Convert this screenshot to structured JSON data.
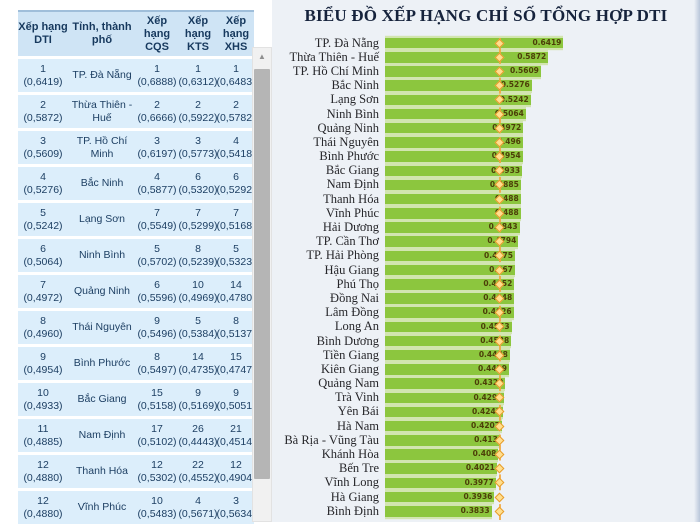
{
  "table": {
    "headers": [
      {
        "top": "Xếp hạng",
        "bottom": "DTI"
      },
      {
        "top": "Tỉnh, thành",
        "bottom": "phố"
      },
      {
        "top": "Xếp hạng",
        "bottom": "CQS"
      },
      {
        "top": "Xếp hạng",
        "bottom": "KTS"
      },
      {
        "top": "Xếp hạng",
        "bottom": "XHS"
      }
    ],
    "rows": [
      {
        "dti_rank": "1",
        "dti_value": "(0,6419)",
        "province": "TP. Đà Nẵng",
        "cqs_rank": "1",
        "cqs_value": "(0,6888)",
        "kts_rank": "1",
        "kts_value": "(0,6312)",
        "xhs_rank": "1",
        "xhs_value": "(0,6483)"
      },
      {
        "dti_rank": "2",
        "dti_value": "(0,5872)",
        "province": "Thừa Thiên - Huế",
        "cqs_rank": "2",
        "cqs_value": "(0,6666)",
        "kts_rank": "2",
        "kts_value": "(0,5922)",
        "xhs_rank": "2",
        "xhs_value": "(0,5782)"
      },
      {
        "dti_rank": "3",
        "dti_value": "(0,5609)",
        "province": "TP. Hồ Chí Minh",
        "cqs_rank": "3",
        "cqs_value": "(0,6197)",
        "kts_rank": "3",
        "kts_value": "(0,5773)",
        "xhs_rank": "4",
        "xhs_value": "(0,5418)"
      },
      {
        "dti_rank": "4",
        "dti_value": "(0,5276)",
        "province": "Bắc Ninh",
        "cqs_rank": "4",
        "cqs_value": "(0,5877)",
        "kts_rank": "6",
        "kts_value": "(0,5320)",
        "xhs_rank": "6",
        "xhs_value": "(0,5292)"
      },
      {
        "dti_rank": "5",
        "dti_value": "(0,5242)",
        "province": "Lạng Sơn",
        "cqs_rank": "7",
        "cqs_value": "(0,5549)",
        "kts_rank": "7",
        "kts_value": "(0,5299)",
        "xhs_rank": "7",
        "xhs_value": "(0,5168)"
      },
      {
        "dti_rank": "6",
        "dti_value": "(0,5064)",
        "province": "Ninh Bình",
        "cqs_rank": "5",
        "cqs_value": "(0,5702)",
        "kts_rank": "8",
        "kts_value": "(0,5239)",
        "xhs_rank": "5",
        "xhs_value": "(0,5323)"
      },
      {
        "dti_rank": "7",
        "dti_value": "(0,4972)",
        "province": "Quảng Ninh",
        "cqs_rank": "6",
        "cqs_value": "(0,5596)",
        "kts_rank": "10",
        "kts_value": "(0,4969)",
        "xhs_rank": "14",
        "xhs_value": "(0,4780)"
      },
      {
        "dti_rank": "8",
        "dti_value": "(0,4960)",
        "province": "Thái Nguyên",
        "cqs_rank": "9",
        "cqs_value": "(0,5496)",
        "kts_rank": "5",
        "kts_value": "(0,5384)",
        "xhs_rank": "8",
        "xhs_value": "(0,5137)"
      },
      {
        "dti_rank": "9",
        "dti_value": "(0,4954)",
        "province": "Bình Phước",
        "cqs_rank": "8",
        "cqs_value": "(0,5497)",
        "kts_rank": "14",
        "kts_value": "(0,4735)",
        "xhs_rank": "15",
        "xhs_value": "(0,4747)"
      },
      {
        "dti_rank": "10",
        "dti_value": "(0,4933)",
        "province": "Bắc Giang",
        "cqs_rank": "15",
        "cqs_value": "(0,5158)",
        "kts_rank": "9",
        "kts_value": "(0,5169)",
        "xhs_rank": "9",
        "xhs_value": "(0,5051)"
      },
      {
        "dti_rank": "11",
        "dti_value": "(0,4885)",
        "province": "Nam Định",
        "cqs_rank": "17",
        "cqs_value": "(0,5102)",
        "kts_rank": "26",
        "kts_value": "(0,4443)",
        "xhs_rank": "21",
        "xhs_value": "(0,4514)"
      },
      {
        "dti_rank": "12",
        "dti_value": "(0,4880)",
        "province": "Thanh Hóa",
        "cqs_rank": "12",
        "cqs_value": "(0,5302)",
        "kts_rank": "22",
        "kts_value": "(0,4552)",
        "xhs_rank": "12",
        "xhs_value": "(0,4904)"
      },
      {
        "dti_rank": "12",
        "dti_value": "(0,4880)",
        "province": "Vĩnh Phúc",
        "cqs_rank": "10",
        "cqs_value": "(0,5483)",
        "kts_rank": "4",
        "kts_value": "(0,5671)",
        "xhs_rank": "3",
        "xhs_value": "(0,5634)"
      }
    ]
  },
  "scrollbar": {
    "up_arrow_icon": "▲"
  },
  "chart_data": {
    "type": "bar",
    "orientation": "horizontal",
    "title": "BIỂU ĐỒ XẾP HẠNG CHỈ SỐ TỔNG HỢP DTI",
    "categories": [
      "TP. Đà Nẵng",
      "Thừa Thiên - Huế",
      "TP. Hồ Chí Minh",
      "Bắc Ninh",
      "Lạng Sơn",
      "Ninh Bình",
      "Quảng Ninh",
      "Thái Nguyên",
      "Bình Phước",
      "Bắc Giang",
      "Nam Định",
      "Thanh Hóa",
      "Vĩnh Phúc",
      "Hải Dương",
      "TP. Cần Thơ",
      "TP. Hải Phòng",
      "Hậu Giang",
      "Phú Thọ",
      "Đồng Nai",
      "Lâm Đồng",
      "Long An",
      "Bình Dương",
      "Tiền Giang",
      "Kiên Giang",
      "Quảng Nam",
      "Trà Vinh",
      "Yên Bái",
      "Hà Nam",
      "Bà Rịa - Vũng Tàu",
      "Khánh Hòa",
      "Bến Tre",
      "Vĩnh Long",
      "Hà Giang",
      "Bình Định"
    ],
    "values": [
      0.6419,
      0.5872,
      0.5609,
      0.5276,
      0.5242,
      0.5064,
      0.4972,
      0.496,
      0.4954,
      0.4933,
      0.4885,
      0.488,
      0.488,
      0.4843,
      0.4794,
      0.4675,
      0.467,
      0.4652,
      0.4648,
      0.4626,
      0.4553,
      0.4538,
      0.4488,
      0.4459,
      0.4329,
      0.4294,
      0.4241,
      0.4207,
      0.413,
      0.408,
      0.4021,
      0.3977,
      0.3936,
      0.3833
    ],
    "value_labels": [
      "0.6419",
      "0.5872",
      "0.5609",
      "0.5276",
      "0.5242",
      "0.5064",
      "0.4972",
      "0.496",
      "0.4954",
      "0.4933",
      "0.4885",
      "0.488",
      "0.488",
      "0.4843",
      "0.4794",
      "0.4675",
      "0.467",
      "0.4652",
      "0.4648",
      "0.4626",
      "0.4553",
      "0.4538",
      "0.4488",
      "0.4459",
      "0.4329",
      "0.4294",
      "0.4241",
      "0.4207",
      "0.413",
      "0.408",
      "0.4021",
      "0.3977",
      "0.3936",
      "0.3833"
    ],
    "value_label_position": "inside-end",
    "bar_color": "#8cc63e",
    "reference_line": {
      "style": "dashed",
      "color": "#f2a53a",
      "marker": "diamond",
      "approx_value": 0.41
    },
    "xlim": [
      0,
      0.72
    ],
    "grid": false,
    "legend": "none"
  },
  "colors": {
    "table_header_bg": "#cfe4f5",
    "table_row_bg": "#dceefb",
    "table_text": "#1d3f63",
    "chart_bg": "#edf1f6",
    "bar": "#8cc63e",
    "reference": "#f2a53a"
  }
}
